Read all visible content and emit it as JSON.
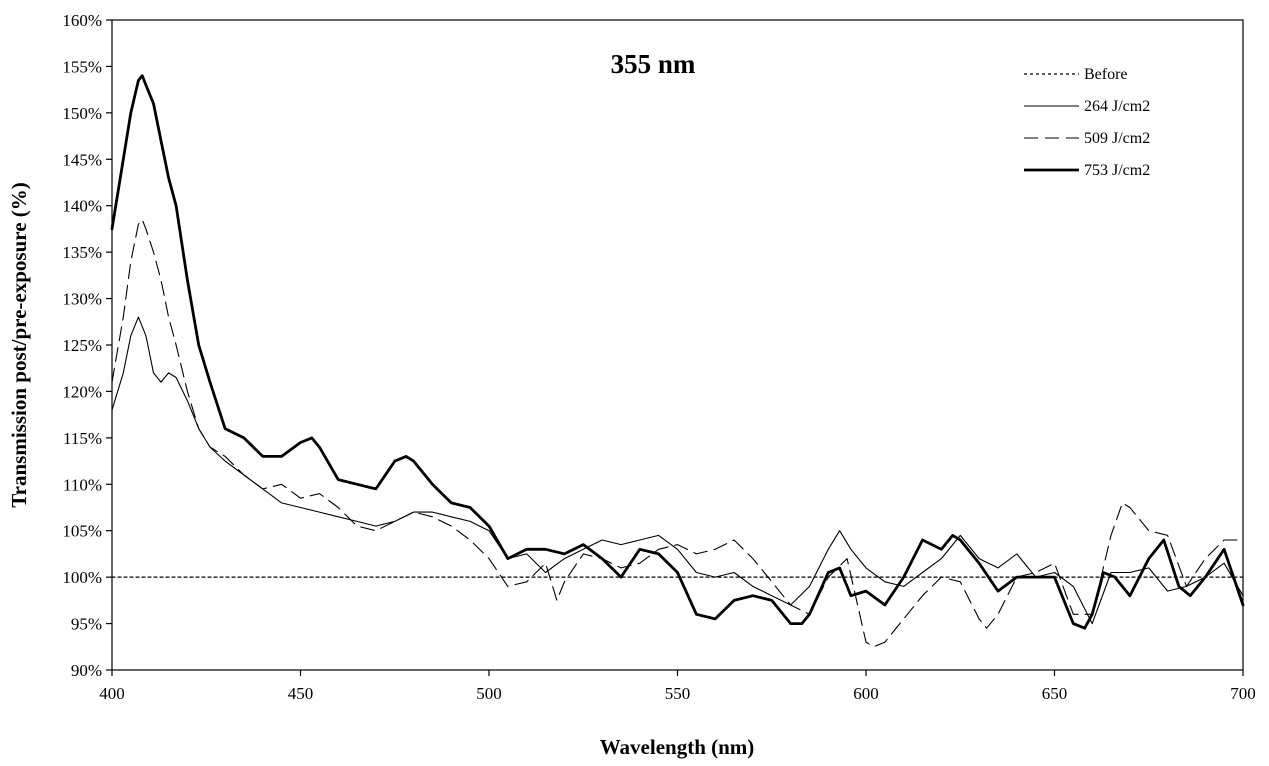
{
  "chart_data": {
    "type": "line",
    "title": "355 nm",
    "xlabel": "Wavelength (nm)",
    "ylabel": "Transmission post/pre-exposure (%)",
    "xlim": [
      400,
      700
    ],
    "ylim": [
      90,
      160
    ],
    "x_ticks": [
      400,
      450,
      500,
      550,
      600,
      650,
      700
    ],
    "x_tick_labels": [
      "400",
      "450",
      "500",
      "550",
      "600",
      "650",
      "700"
    ],
    "y_ticks": [
      90,
      95,
      100,
      105,
      110,
      115,
      120,
      125,
      130,
      135,
      140,
      145,
      150,
      155,
      160
    ],
    "y_tick_labels": [
      "90%",
      "95%",
      "100%",
      "105%",
      "110%",
      "115%",
      "120%",
      "125%",
      "130%",
      "135%",
      "140%",
      "145%",
      "150%",
      "155%",
      "160%"
    ],
    "grid": false,
    "legend_position": "top-right",
    "series": [
      {
        "name": "Before",
        "style": "dotted",
        "x": [
          400,
          700
        ],
        "y": [
          100,
          100
        ]
      },
      {
        "name": "264 J/cm2",
        "style": "thin-solid",
        "x": [
          400,
          403,
          405,
          407,
          409,
          411,
          413,
          415,
          417,
          420,
          423,
          426,
          430,
          435,
          440,
          445,
          450,
          455,
          460,
          465,
          470,
          475,
          480,
          485,
          490,
          495,
          500,
          505,
          510,
          515,
          520,
          525,
          530,
          535,
          540,
          545,
          550,
          555,
          560,
          565,
          570,
          575,
          580,
          585,
          590,
          593,
          596,
          600,
          605,
          610,
          615,
          620,
          625,
          630,
          635,
          640,
          645,
          650,
          655,
          660,
          665,
          670,
          675,
          680,
          685,
          690,
          695,
          700
        ],
        "y": [
          118,
          122,
          126,
          128,
          126,
          122,
          121,
          122,
          121.5,
          119,
          116,
          114,
          112.5,
          111,
          109.5,
          108,
          107.5,
          107,
          106.5,
          106,
          105.5,
          106,
          107,
          107,
          106.5,
          106,
          105,
          102,
          102.5,
          100.5,
          102,
          103,
          104,
          103.5,
          104,
          104.5,
          103,
          100.5,
          100,
          100.5,
          99,
          98,
          97,
          99,
          103,
          105,
          103,
          101,
          99.5,
          99,
          100.5,
          102,
          104.5,
          102,
          101,
          102.5,
          100,
          100.5,
          99,
          95,
          100.5,
          100.5,
          101,
          98.5,
          99,
          100,
          101.5,
          98
        ]
      },
      {
        "name": "509 J/cm2",
        "style": "dashed",
        "x": [
          400,
          403,
          405,
          407,
          408,
          409,
          411,
          413,
          415,
          417,
          420,
          423,
          426,
          430,
          435,
          440,
          445,
          450,
          455,
          460,
          465,
          470,
          475,
          480,
          485,
          490,
          495,
          500,
          505,
          510,
          515,
          518,
          520,
          525,
          530,
          535,
          540,
          545,
          550,
          555,
          560,
          565,
          570,
          575,
          580,
          585,
          590,
          595,
          600,
          602,
          605,
          610,
          615,
          620,
          625,
          630,
          632,
          635,
          640,
          645,
          650,
          655,
          660,
          665,
          668,
          670,
          675,
          680,
          685,
          690,
          695,
          700
        ],
        "y": [
          121,
          128,
          134,
          138,
          138.5,
          137.5,
          135,
          132,
          128,
          125,
          120,
          116,
          114,
          113,
          111,
          109.5,
          110,
          108.5,
          109,
          107.5,
          105.5,
          105,
          106,
          107,
          106.5,
          105.5,
          104,
          102,
          99,
          99.5,
          101.5,
          97.5,
          99.5,
          102.5,
          102,
          101,
          101.5,
          103,
          103.5,
          102.5,
          103,
          104,
          102,
          99.5,
          97,
          96,
          100,
          102,
          93,
          92.5,
          93,
          95.5,
          98,
          100,
          99.5,
          95.5,
          94.5,
          96,
          100,
          100.5,
          101.5,
          96,
          96,
          104.5,
          108,
          107.5,
          105,
          104.5,
          99,
          102,
          104,
          104
        ]
      },
      {
        "name": "753 J/cm2",
        "style": "thick-solid",
        "x": [
          400,
          403,
          405,
          407,
          408,
          409,
          411,
          413,
          415,
          417,
          420,
          423,
          426,
          430,
          435,
          440,
          445,
          450,
          453,
          455,
          460,
          465,
          470,
          475,
          478,
          480,
          485,
          490,
          495,
          500,
          505,
          510,
          515,
          520,
          525,
          530,
          535,
          540,
          545,
          550,
          555,
          560,
          565,
          570,
          575,
          580,
          583,
          585,
          590,
          593,
          596,
          600,
          605,
          610,
          615,
          620,
          623,
          625,
          630,
          635,
          640,
          645,
          650,
          655,
          658,
          660,
          663,
          666,
          670,
          675,
          679,
          683,
          686,
          690,
          695,
          700
        ],
        "y": [
          137.5,
          145,
          150,
          153.5,
          154,
          153,
          151,
          147,
          143,
          140,
          132,
          125,
          121,
          116,
          115,
          113,
          113,
          114.5,
          115,
          114,
          110.5,
          110,
          109.5,
          112.5,
          113,
          112.5,
          110,
          108,
          107.5,
          105.5,
          102,
          103,
          103,
          102.5,
          103.5,
          102,
          100,
          103,
          102.5,
          100.5,
          96,
          95.5,
          97.5,
          98,
          97.5,
          95,
          95,
          96,
          100.5,
          101,
          98,
          98.5,
          97,
          100,
          104,
          103,
          104.5,
          104,
          101.5,
          98.5,
          100,
          100,
          100,
          95,
          94.5,
          96,
          100.5,
          100,
          98,
          102,
          104,
          99,
          98,
          100,
          103,
          97
        ]
      }
    ]
  }
}
